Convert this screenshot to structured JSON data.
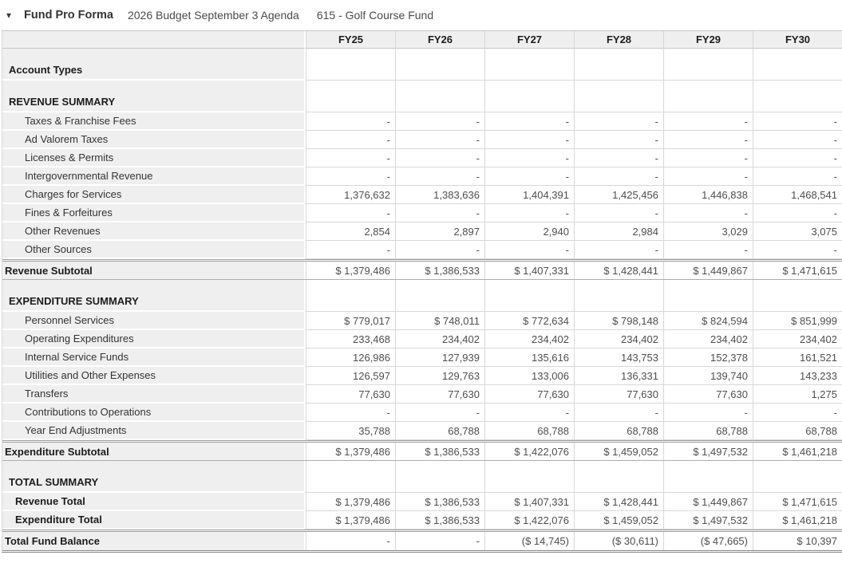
{
  "header": {
    "caret_icon": "▾",
    "title": "Fund Pro Forma",
    "budget": "2026 Budget September 3 Agenda",
    "fund": "615 - Golf Course Fund"
  },
  "colors": {
    "label_column_bg": "#efefef",
    "grid_border": "#d8d8d8",
    "strong_border": "#9b9b9b",
    "number_text": "#4e4e4e",
    "label_text": "#333333"
  },
  "table": {
    "columns": [
      "FY25",
      "FY26",
      "FY27",
      "FY28",
      "FY29",
      "FY30"
    ],
    "rows": [
      {
        "kind": "section",
        "label": "Account Types",
        "values": [
          "",
          "",
          "",
          "",
          "",
          ""
        ]
      },
      {
        "kind": "section",
        "label": "REVENUE SUMMARY",
        "values": [
          "",
          "",
          "",
          "",
          "",
          ""
        ]
      },
      {
        "kind": "item",
        "label": "Taxes & Franchise Fees",
        "values": [
          "-",
          "-",
          "-",
          "-",
          "-",
          "-"
        ]
      },
      {
        "kind": "item",
        "label": "Ad Valorem Taxes",
        "values": [
          "-",
          "-",
          "-",
          "-",
          "-",
          "-"
        ]
      },
      {
        "kind": "item",
        "label": "Licenses & Permits",
        "values": [
          "-",
          "-",
          "-",
          "-",
          "-",
          "-"
        ]
      },
      {
        "kind": "item",
        "label": "Intergovernmental Revenue",
        "values": [
          "-",
          "-",
          "-",
          "-",
          "-",
          "-"
        ]
      },
      {
        "kind": "item",
        "label": "Charges for Services",
        "values": [
          "1,376,632",
          "1,383,636",
          "1,404,391",
          "1,425,456",
          "1,446,838",
          "1,468,541"
        ]
      },
      {
        "kind": "item",
        "label": "Fines & Forfeitures",
        "values": [
          "-",
          "-",
          "-",
          "-",
          "-",
          "-"
        ]
      },
      {
        "kind": "item",
        "label": "Other Revenues",
        "values": [
          "2,854",
          "2,897",
          "2,940",
          "2,984",
          "3,029",
          "3,075"
        ]
      },
      {
        "kind": "item",
        "label": "Other Sources",
        "values": [
          "-",
          "-",
          "-",
          "-",
          "-",
          "-"
        ]
      },
      {
        "kind": "subtotal",
        "label": "Revenue Subtotal",
        "values": [
          "$ 1,379,486",
          "$ 1,386,533",
          "$ 1,407,331",
          "$ 1,428,441",
          "$ 1,449,867",
          "$ 1,471,615"
        ]
      },
      {
        "kind": "section",
        "label": "EXPENDITURE SUMMARY",
        "values": [
          "",
          "",
          "",
          "",
          "",
          ""
        ]
      },
      {
        "kind": "item",
        "label": "Personnel Services",
        "values": [
          "$ 779,017",
          "$ 748,011",
          "$ 772,634",
          "$ 798,148",
          "$ 824,594",
          "$ 851,999"
        ]
      },
      {
        "kind": "item",
        "label": "Operating Expenditures",
        "values": [
          "233,468",
          "234,402",
          "234,402",
          "234,402",
          "234,402",
          "234,402"
        ]
      },
      {
        "kind": "item",
        "label": "Internal Service Funds",
        "values": [
          "126,986",
          "127,939",
          "135,616",
          "143,753",
          "152,378",
          "161,521"
        ]
      },
      {
        "kind": "item",
        "label": "Utilities and Other Expenses",
        "values": [
          "126,597",
          "129,763",
          "133,006",
          "136,331",
          "139,740",
          "143,233"
        ]
      },
      {
        "kind": "item",
        "label": "Transfers",
        "values": [
          "77,630",
          "77,630",
          "77,630",
          "77,630",
          "77,630",
          "1,275"
        ]
      },
      {
        "kind": "item",
        "label": "Contributions to Operations",
        "values": [
          "-",
          "-",
          "-",
          "-",
          "-",
          "-"
        ]
      },
      {
        "kind": "item",
        "label": "Year End Adjustments",
        "values": [
          "35,788",
          "68,788",
          "68,788",
          "68,788",
          "68,788",
          "68,788"
        ]
      },
      {
        "kind": "subtotal",
        "label": "Expenditure Subtotal",
        "values": [
          "$ 1,379,486",
          "$ 1,386,533",
          "$ 1,422,076",
          "$ 1,459,052",
          "$ 1,497,532",
          "$ 1,461,218"
        ]
      },
      {
        "kind": "section",
        "label": "TOTAL SUMMARY",
        "values": [
          "",
          "",
          "",
          "",
          "",
          ""
        ]
      },
      {
        "kind": "total",
        "label": "Revenue Total",
        "values": [
          "$ 1,379,486",
          "$ 1,386,533",
          "$ 1,407,331",
          "$ 1,428,441",
          "$ 1,449,867",
          "$ 1,471,615"
        ]
      },
      {
        "kind": "total",
        "label": "Expenditure Total",
        "values": [
          "$ 1,379,486",
          "$ 1,386,533",
          "$ 1,422,076",
          "$ 1,459,052",
          "$ 1,497,532",
          "$ 1,461,218"
        ]
      },
      {
        "kind": "balance",
        "label": "Total Fund Balance",
        "values": [
          "-",
          "-",
          "($ 14,745)",
          "($ 30,611)",
          "($ 47,665)",
          "$ 10,397"
        ]
      }
    ]
  }
}
